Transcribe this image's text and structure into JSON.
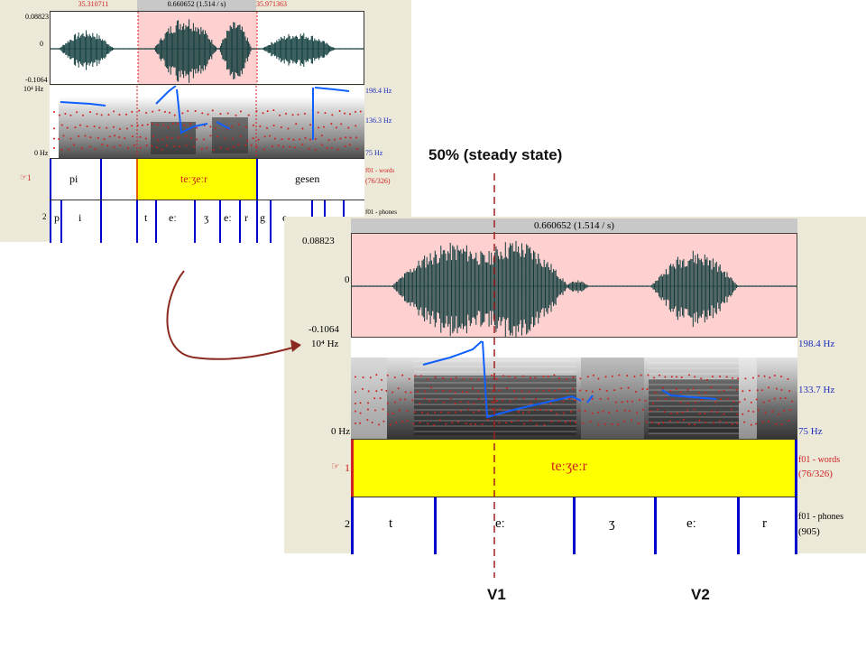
{
  "small_view": {
    "sel_start": "35.310711",
    "sel_duration": "0.660652 (1.514 / s)",
    "sel_end": "35.971363",
    "amp_max": "0.08823",
    "amp_zero": "0",
    "amp_min": "-0.1064",
    "freq_top": "10⁴ Hz",
    "freq_bottom": "0 Hz",
    "pitch_top": "198.4 Hz",
    "pitch_mid": "136.3 Hz",
    "pitch_bottom": "75 Hz",
    "tier1_num": "1",
    "tier1_name": "f01 - words",
    "tier1_count": "(76/326)",
    "tier2_num": "2",
    "tier2_name": "f01 - phones",
    "words": [
      "pi",
      "teːʒeːr",
      "gesen"
    ],
    "phones": [
      "p",
      "i",
      "t",
      "eː",
      "ʒ",
      "eː",
      "r",
      "g",
      "e"
    ]
  },
  "large_view": {
    "sel_duration": "0.660652 (1.514 / s)",
    "amp_max": "0.08823",
    "amp_zero": "0",
    "amp_min": "-0.1064",
    "freq_top": "10⁴ Hz",
    "freq_bottom": "0 Hz",
    "pitch_top": "198.4 Hz",
    "pitch_mid": "133.7 Hz",
    "pitch_bottom": "75 Hz",
    "tier1_num": "1",
    "tier1_name": "f01 - words",
    "tier1_count": "(76/326)",
    "tier2_num": "2",
    "tier2_name": "f01 - phones",
    "tier2_count": "(905)",
    "word": "teːʒeːr",
    "phones": [
      "t",
      "eː",
      "ʒ",
      "eː",
      "r"
    ]
  },
  "annotations": {
    "steady_state": "50% (steady state)",
    "v1": "V1",
    "v2": "V2"
  },
  "colors": {
    "selection": "#ffd0d0",
    "selection_bar": "#c8c8c8",
    "waveform": "#0d3a3a",
    "pitch": "#1060ff",
    "formant": "#d02020",
    "tier_highlight": "#ffff00",
    "boundary": "#0000cc",
    "arrow": "#8b2a20"
  }
}
